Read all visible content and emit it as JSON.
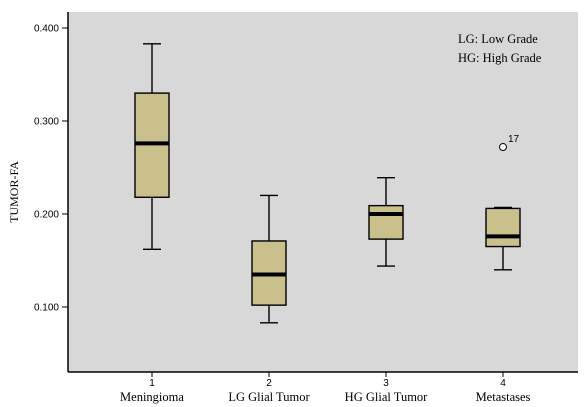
{
  "chart_data": {
    "type": "box",
    "ylabel": "TUMOR-FA",
    "ylim": [
      0.05,
      0.42
    ],
    "yticks": [
      {
        "value": 0.1,
        "label": "0.100"
      },
      {
        "value": 0.2,
        "label": "0.200"
      },
      {
        "value": 0.3,
        "label": "0.300"
      },
      {
        "value": 0.4,
        "label": "0.400"
      }
    ],
    "grid": false,
    "background_color": "#d8d8d8",
    "box_color": "#c9c08b",
    "legend_placement": "top-right",
    "legend_lines": [
      "LG: Low Grade",
      "HG: High Grade"
    ],
    "categories": [
      {
        "number": "1",
        "name": "Meningioma",
        "min": 0.162,
        "q1": 0.218,
        "median": 0.276,
        "q3": 0.33,
        "max": 0.383,
        "outliers": []
      },
      {
        "number": "2",
        "name": "LG Glial Tumor",
        "min": 0.083,
        "q1": 0.102,
        "median": 0.135,
        "q3": 0.171,
        "max": 0.22,
        "outliers": []
      },
      {
        "number": "3",
        "name": "HG Glial Tumor",
        "min": 0.144,
        "q1": 0.173,
        "median": 0.2,
        "q3": 0.209,
        "max": 0.239,
        "outliers": []
      },
      {
        "number": "4",
        "name": "Metastases",
        "min": 0.14,
        "q1": 0.165,
        "median": 0.176,
        "q3": 0.206,
        "max": 0.207,
        "outliers": [
          {
            "value": 0.272,
            "label": "17"
          }
        ]
      }
    ]
  }
}
